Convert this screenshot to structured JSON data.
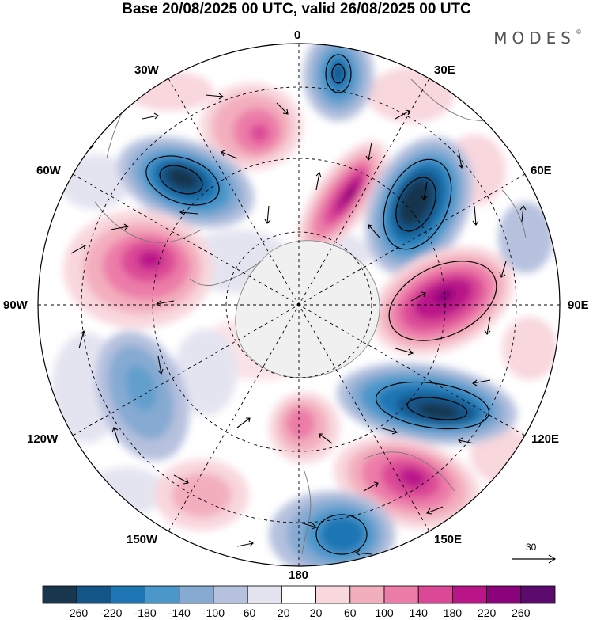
{
  "title": "Base 20/08/2025 00 UTC, valid 26/08/2025 00 UTC",
  "brand": "MODES",
  "brand_mark": "©",
  "projection": "south-polar-stereographic",
  "longitude_labels": {
    "lon_0": "0",
    "lon_30e": "30E",
    "lon_60e": "60E",
    "lon_90e": "90E",
    "lon_120e": "120E",
    "lon_150e": "150E",
    "lon_180": "180",
    "lon_150w": "150W",
    "lon_120w": "120W",
    "lon_90w": "90W",
    "lon_60w": "60W",
    "lon_30w": "30W"
  },
  "vector_scale": {
    "value": "30"
  },
  "colorbar": {
    "colors": [
      "#18364e",
      "#125586",
      "#1f76b4",
      "#4b97ca",
      "#86aad2",
      "#b6c1de",
      "#e4e4f1",
      "#ffffff",
      "#f8d7dd",
      "#f3aebd",
      "#ec7ca8",
      "#db4896",
      "#b91589",
      "#8b037a",
      "#5d0a6e"
    ],
    "tick_labels": [
      "-260",
      "-220",
      "-180",
      "-140",
      "-100",
      "-60",
      "-20",
      "20",
      "60",
      "100",
      "140",
      "180",
      "220",
      "260"
    ]
  },
  "anomaly_centers": [
    {
      "sign": "negative",
      "lon": "20E",
      "value": -240
    },
    {
      "sign": "negative",
      "lon": "45E",
      "value": -260
    },
    {
      "sign": "negative",
      "lon": "55W",
      "value": -260
    },
    {
      "sign": "negative",
      "lon": "120E",
      "value": -240
    },
    {
      "sign": "negative",
      "lon": "160E",
      "value": -180
    },
    {
      "sign": "negative",
      "lon": "105W",
      "value": -120
    },
    {
      "sign": "positive",
      "lon": "15W",
      "value": 140
    },
    {
      "sign": "positive",
      "lon": "30E",
      "value": 220
    },
    {
      "sign": "positive",
      "lon": "85E",
      "value": 200
    },
    {
      "sign": "positive",
      "lon": "80W",
      "value": 180
    },
    {
      "sign": "positive",
      "lon": "145E",
      "value": 200
    },
    {
      "sign": "positive",
      "lon": "170E",
      "value": 140
    },
    {
      "sign": "positive",
      "lon": "145W",
      "value": 100
    }
  ]
}
